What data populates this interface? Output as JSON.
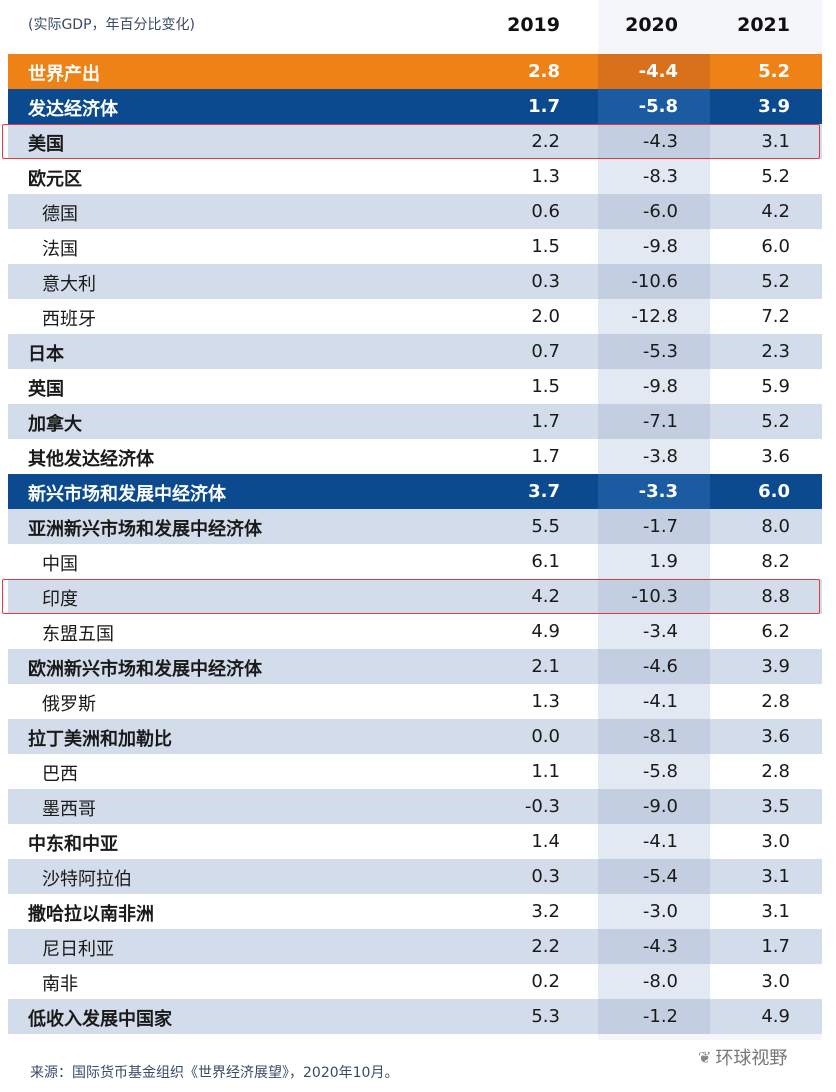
{
  "header": {
    "unit_note": "(实际GDP，年百分比变化)",
    "years": [
      "2019",
      "2020",
      "2021"
    ]
  },
  "rows": [
    {
      "name": "世界产出",
      "kind": "world",
      "level": 1,
      "values": [
        "2.8",
        "-4.4",
        "5.2"
      ]
    },
    {
      "name": "发达经济体",
      "kind": "blue",
      "level": 1,
      "values": [
        "1.7",
        "-5.8",
        "3.9"
      ]
    },
    {
      "name": "美国",
      "kind": "odd",
      "level": 1,
      "values": [
        "2.2",
        "-4.3",
        "3.1"
      ],
      "highlight": true
    },
    {
      "name": "欧元区",
      "kind": "even",
      "level": 1,
      "values": [
        "1.3",
        "-8.3",
        "5.2"
      ]
    },
    {
      "name": "德国",
      "kind": "odd",
      "level": 2,
      "values": [
        "0.6",
        "-6.0",
        "4.2"
      ]
    },
    {
      "name": "法国",
      "kind": "even",
      "level": 2,
      "values": [
        "1.5",
        "-9.8",
        "6.0"
      ]
    },
    {
      "name": "意大利",
      "kind": "odd",
      "level": 2,
      "values": [
        "0.3",
        "-10.6",
        "5.2"
      ]
    },
    {
      "name": "西班牙",
      "kind": "even",
      "level": 2,
      "values": [
        "2.0",
        "-12.8",
        "7.2"
      ]
    },
    {
      "name": "日本",
      "kind": "odd",
      "level": 1,
      "values": [
        "0.7",
        "-5.3",
        "2.3"
      ]
    },
    {
      "name": "英国",
      "kind": "even",
      "level": 1,
      "values": [
        "1.5",
        "-9.8",
        "5.9"
      ]
    },
    {
      "name": "加拿大",
      "kind": "odd",
      "level": 1,
      "values": [
        "1.7",
        "-7.1",
        "5.2"
      ]
    },
    {
      "name": "其他发达经济体",
      "kind": "even",
      "level": 1,
      "values": [
        "1.7",
        "-3.8",
        "3.6"
      ]
    },
    {
      "name": "新兴市场和发展中经济体",
      "kind": "blue",
      "level": 1,
      "values": [
        "3.7",
        "-3.3",
        "6.0"
      ]
    },
    {
      "name": "亚洲新兴市场和发展中经济体",
      "kind": "odd",
      "level": 1,
      "values": [
        "5.5",
        "-1.7",
        "8.0"
      ]
    },
    {
      "name": "中国",
      "kind": "even",
      "level": 2,
      "values": [
        "6.1",
        "1.9",
        "8.2"
      ]
    },
    {
      "name": "印度",
      "kind": "odd",
      "level": 2,
      "values": [
        "4.2",
        "-10.3",
        "8.8"
      ],
      "highlight": true
    },
    {
      "name": "东盟五国",
      "kind": "even",
      "level": 2,
      "values": [
        "4.9",
        "-3.4",
        "6.2"
      ]
    },
    {
      "name": "欧洲新兴市场和发展中经济体",
      "kind": "odd",
      "level": 1,
      "values": [
        "2.1",
        "-4.6",
        "3.9"
      ]
    },
    {
      "name": "俄罗斯",
      "kind": "even",
      "level": 2,
      "values": [
        "1.3",
        "-4.1",
        "2.8"
      ]
    },
    {
      "name": "拉丁美洲和加勒比",
      "kind": "odd",
      "level": 1,
      "values": [
        "0.0",
        "-8.1",
        "3.6"
      ]
    },
    {
      "name": "巴西",
      "kind": "even",
      "level": 2,
      "values": [
        "1.1",
        "-5.8",
        "2.8"
      ]
    },
    {
      "name": "墨西哥",
      "kind": "odd",
      "level": 2,
      "values": [
        "-0.3",
        "-9.0",
        "3.5"
      ]
    },
    {
      "name": "中东和中亚",
      "kind": "even",
      "level": 1,
      "values": [
        "1.4",
        "-4.1",
        "3.0"
      ]
    },
    {
      "name": "沙特阿拉伯",
      "kind": "odd",
      "level": 2,
      "values": [
        "0.3",
        "-5.4",
        "3.1"
      ]
    },
    {
      "name": "撒哈拉以南非洲",
      "kind": "even",
      "level": 1,
      "values": [
        "3.2",
        "-3.0",
        "3.1"
      ]
    },
    {
      "name": "尼日利亚",
      "kind": "odd",
      "level": 2,
      "values": [
        "2.2",
        "-4.3",
        "1.7"
      ]
    },
    {
      "name": "南非",
      "kind": "even",
      "level": 2,
      "values": [
        "0.2",
        "-8.0",
        "3.0"
      ]
    },
    {
      "name": "低收入发展中国家",
      "kind": "odd",
      "level": 1,
      "values": [
        "5.3",
        "-1.2",
        "4.9"
      ]
    }
  ],
  "footer": {
    "source": "来源：国际货币基金组织《世界经济展望》，2020年10月。",
    "watermark": "环球视野",
    "watermark_icon": "wechat-icon"
  },
  "colors": {
    "world_row": "#ee8216",
    "group_row": "#0b4a8e",
    "stripe": "#d3dcea",
    "highlight_border": "#e0393f"
  }
}
